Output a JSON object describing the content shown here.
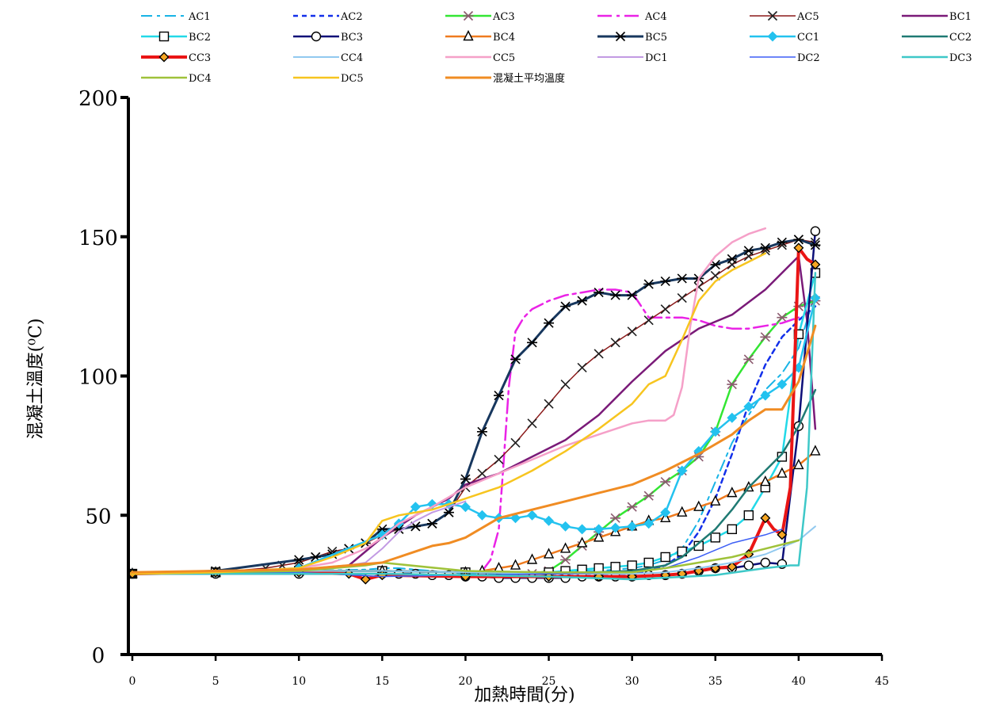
{
  "chart_data": {
    "type": "line",
    "title": "",
    "xlabel": "加熱時間(分)",
    "ylabel": "混凝土溫度(⁰C)",
    "xlim": [
      0,
      45
    ],
    "ylim": [
      0,
      200
    ],
    "xticks": [
      0,
      5,
      10,
      15,
      20,
      25,
      30,
      35,
      40,
      45
    ],
    "yticks": [
      0,
      50,
      100,
      150,
      200
    ],
    "grid": false,
    "legend_position": "top",
    "series": [
      {
        "name": "AC1",
        "color": "#18b4e6",
        "dash": "14,6,4,6",
        "marker": "none",
        "width": 2,
        "x": [
          0,
          5,
          10,
          14,
          15,
          16,
          17,
          18,
          19,
          20,
          21,
          22,
          23,
          24,
          25,
          26,
          27,
          28,
          29,
          30,
          31,
          32,
          33,
          34,
          35,
          36,
          37,
          38,
          39,
          40,
          41
        ],
        "y": [
          29,
          29.5,
          30,
          30.5,
          31,
          31,
          30.5,
          30,
          29.5,
          29,
          29,
          29,
          29,
          29,
          29,
          29.5,
          30,
          30,
          30.5,
          31,
          32,
          34,
          38,
          48,
          62,
          76,
          86,
          95,
          101,
          110,
          130
        ]
      },
      {
        "name": "AC2",
        "color": "#1330ea",
        "dash": "6,5",
        "marker": "none",
        "width": 2.5,
        "x": [
          0,
          5,
          10,
          15,
          20,
          25,
          30,
          31,
          32,
          33,
          34,
          35,
          36,
          37,
          38,
          39,
          40,
          41
        ],
        "y": [
          29,
          29.5,
          30,
          30,
          29.5,
          29,
          29,
          30,
          32,
          36,
          44,
          56,
          72,
          90,
          104,
          114,
          120,
          125
        ]
      },
      {
        "name": "AC3",
        "color": "#33e633",
        "dash": "",
        "marker": "star",
        "markerColor": "#8b5a6e",
        "width": 2.5,
        "x": [
          0,
          5,
          10,
          15,
          20,
          24,
          25,
          26,
          27,
          28,
          29,
          30,
          31,
          32,
          33,
          34,
          35,
          36,
          37,
          38,
          39,
          40,
          41
        ],
        "y": [
          29,
          29.5,
          30,
          30,
          29.5,
          29,
          30,
          34,
          39,
          44,
          49,
          53,
          57,
          62,
          66,
          71,
          80,
          97,
          106,
          114,
          121,
          125,
          127
        ]
      },
      {
        "name": "AC4",
        "color": "#ea23e6",
        "dash": "18,6,4,6",
        "marker": "none",
        "width": 2.5,
        "x": [
          0,
          5,
          10,
          15,
          20,
          21,
          21.5,
          22,
          22.3,
          22.6,
          23,
          23.5,
          24,
          25,
          26,
          27,
          28,
          29,
          30,
          31,
          32,
          33,
          34,
          35,
          36,
          37,
          38,
          39,
          40
        ],
        "y": [
          29,
          29.5,
          30,
          30,
          29.5,
          30,
          34,
          45,
          70,
          96,
          116,
          121,
          124,
          127,
          129,
          130,
          131,
          131,
          130,
          121,
          121,
          121,
          120,
          118,
          117,
          117,
          118,
          119,
          121
        ]
      },
      {
        "name": "AC5",
        "color": "#8b1a1a",
        "dash": "",
        "marker": "x",
        "markerColor": "#202020",
        "width": 1.5,
        "x": [
          0,
          5,
          8,
          9,
          10,
          11,
          12,
          13,
          14,
          15,
          16,
          17,
          18,
          19,
          20,
          21,
          22,
          23,
          24,
          25,
          26,
          27,
          28,
          29,
          30,
          31,
          32,
          33,
          34,
          35,
          36,
          37,
          38,
          39,
          40,
          41
        ],
        "y": [
          29,
          29.5,
          31,
          32,
          33,
          35,
          37,
          38,
          40,
          43,
          45,
          46,
          47,
          51,
          60,
          65,
          70,
          76,
          83,
          90,
          97,
          103,
          108,
          112,
          116,
          120,
          124,
          128,
          132,
          136,
          140,
          143,
          145,
          147,
          149,
          148
        ]
      },
      {
        "name": "BC1",
        "color": "#7a1a78",
        "dash": "",
        "marker": "none",
        "width": 2.5,
        "x": [
          0,
          5,
          10,
          13,
          15,
          17,
          19,
          20,
          22,
          24,
          26,
          28,
          30,
          32,
          34,
          36,
          38,
          39,
          40,
          40.5,
          41
        ],
        "y": [
          29,
          29.5,
          30.5,
          32,
          42,
          50,
          56,
          61,
          65,
          71,
          77,
          86,
          98,
          109,
          117,
          122,
          131,
          137,
          143,
          120,
          81
        ]
      },
      {
        "name": "BC2",
        "color": "#23d9e8",
        "dash": "",
        "marker": "square",
        "markerColor": "#000000",
        "width": 2.5,
        "x": [
          0,
          5,
          10,
          15,
          20,
          25,
          26,
          27,
          28,
          29,
          30,
          31,
          32,
          33,
          34,
          35,
          36,
          37,
          38,
          39,
          40,
          41
        ],
        "y": [
          29,
          29.5,
          30,
          30,
          29.5,
          29.5,
          30,
          30.5,
          31,
          31.5,
          32,
          33,
          35,
          37,
          39,
          42,
          45,
          50,
          60,
          71,
          115,
          137
        ]
      },
      {
        "name": "BC3",
        "color": "#0d0f78",
        "dash": "",
        "marker": "circle",
        "markerColor": "#000000",
        "width": 2.5,
        "x": [
          0,
          5,
          10,
          15,
          16,
          17,
          18,
          19,
          20,
          21,
          22,
          23,
          24,
          25,
          26,
          27,
          28,
          29,
          30,
          31,
          32,
          33,
          34,
          35,
          36,
          37,
          38,
          39,
          40,
          41
        ],
        "y": [
          29,
          29,
          29,
          29,
          29,
          29,
          28.5,
          28.5,
          28,
          28,
          27.5,
          27.5,
          27.5,
          27.5,
          27.5,
          28,
          28,
          28,
          28,
          28.5,
          28.5,
          29,
          30,
          31,
          31,
          32,
          33,
          32.5,
          82,
          152
        ]
      },
      {
        "name": "BC4",
        "color": "#ef7b1f",
        "dash": "",
        "marker": "triangle",
        "markerColor": "#000000",
        "width": 2.5,
        "x": [
          0,
          5,
          10,
          15,
          20,
          21,
          22,
          23,
          24,
          25,
          26,
          27,
          28,
          29,
          30,
          31,
          32,
          33,
          34,
          35,
          36,
          37,
          38,
          39,
          40,
          41
        ],
        "y": [
          29,
          29.5,
          30,
          30,
          29.5,
          30,
          31,
          32,
          34,
          36,
          38,
          40,
          42,
          44,
          46,
          48,
          49,
          51,
          53,
          55,
          58,
          60,
          62,
          65,
          68,
          73
        ]
      },
      {
        "name": "BC5",
        "color": "#17375e",
        "dash": "",
        "marker": "star",
        "markerColor": "#000000",
        "width": 3,
        "x": [
          0,
          5,
          10,
          11,
          12,
          13,
          14,
          15,
          16,
          17,
          18,
          19,
          20,
          21,
          22,
          23,
          24,
          25,
          26,
          27,
          28,
          29,
          30,
          31,
          32,
          33,
          34,
          35,
          36,
          37,
          38,
          39,
          40,
          41
        ],
        "y": [
          29,
          30,
          34,
          35,
          36,
          38,
          40,
          45,
          45,
          46,
          47,
          51,
          63,
          80,
          93,
          106,
          112,
          119,
          125,
          127,
          130,
          129,
          129,
          133,
          134,
          135,
          135,
          140,
          142,
          145,
          146,
          148,
          149,
          147
        ]
      },
      {
        "name": "CC1",
        "color": "#23c2ef",
        "dash": "",
        "marker": "diamond",
        "markerColor": "#23c2ef",
        "width": 2.5,
        "x": [
          0,
          5,
          10,
          15,
          16,
          17,
          18,
          19,
          20,
          21,
          22,
          23,
          24,
          25,
          26,
          27,
          28,
          29,
          30,
          31,
          32,
          33,
          34,
          35,
          36,
          37,
          38,
          39,
          40,
          41
        ],
        "y": [
          29,
          29.5,
          31,
          43,
          47,
          53,
          54,
          54,
          53,
          50,
          49,
          49,
          50,
          48,
          46,
          45,
          45,
          45.5,
          46,
          47,
          51,
          66,
          73,
          80,
          85,
          89,
          93,
          97,
          103,
          128
        ]
      },
      {
        "name": "CC2",
        "color": "#1f7a73",
        "dash": "",
        "marker": "none",
        "width": 2.5,
        "x": [
          0,
          5,
          10,
          15,
          20,
          25,
          30,
          32,
          33,
          34,
          35,
          36,
          37,
          38,
          39,
          40,
          41
        ],
        "y": [
          29,
          29.5,
          30,
          30,
          29.5,
          29,
          30,
          32,
          35,
          40,
          45,
          52,
          60,
          66,
          72,
          82,
          95
        ]
      },
      {
        "name": "CC3",
        "color": "#ea1515",
        "dash": "",
        "marker": "diamond",
        "markerColor": "#000000",
        "width": 4,
        "x": [
          0,
          5,
          10,
          13,
          14,
          15,
          20,
          25,
          28,
          30,
          32,
          33,
          34,
          35,
          36,
          37,
          38,
          38.5,
          39,
          39.5,
          40,
          40.5,
          41
        ],
        "y": [
          29,
          29.5,
          29.5,
          29,
          27,
          28.5,
          28,
          28,
          28,
          28,
          28.5,
          29,
          30,
          31,
          31.5,
          36,
          49,
          45,
          43,
          60,
          146,
          142,
          140
        ]
      },
      {
        "name": "CC4",
        "color": "#91c9ef",
        "dash": "",
        "marker": "none",
        "width": 2,
        "x": [
          0,
          5,
          10,
          15,
          20,
          25,
          30,
          32,
          34,
          36,
          38,
          40,
          41
        ],
        "y": [
          29,
          29.5,
          30,
          30,
          29.5,
          29,
          29,
          29.5,
          31,
          33,
          36,
          41,
          46
        ]
      },
      {
        "name": "CC5",
        "color": "#f5a0c8",
        "dash": "",
        "marker": "none",
        "width": 2.5,
        "x": [
          0,
          5,
          10,
          12,
          14,
          15,
          16,
          18,
          20,
          22,
          24,
          26,
          28,
          30,
          31,
          32,
          32.5,
          33,
          33.5,
          34,
          35,
          36,
          37,
          38
        ],
        "y": [
          29,
          29.5,
          31,
          33,
          38,
          42,
          47,
          53,
          60,
          65,
          70,
          75,
          79,
          83,
          84,
          84,
          86,
          96,
          118,
          135,
          143,
          148,
          151,
          153
        ]
      },
      {
        "name": "DC1",
        "color": "#c29ae3",
        "dash": "",
        "marker": "none",
        "width": 2,
        "x": [
          0,
          5,
          10,
          13,
          14,
          15,
          16,
          17,
          18,
          19,
          20
        ],
        "y": [
          29,
          29.5,
          30,
          32,
          33,
          38,
          44,
          48,
          51,
          53,
          55
        ]
      },
      {
        "name": "DC2",
        "color": "#3d5ff5",
        "dash": "",
        "marker": "none",
        "width": 1.5,
        "x": [
          0,
          5,
          10,
          15,
          20,
          25,
          30,
          32,
          34,
          36,
          38,
          39
        ],
        "y": [
          29,
          29.5,
          29.5,
          28,
          28.5,
          29,
          29.5,
          31,
          35,
          40,
          43,
          45
        ]
      },
      {
        "name": "DC3",
        "color": "#3ec8c8",
        "dash": "",
        "marker": "none",
        "width": 2.5,
        "x": [
          0,
          5,
          10,
          15,
          20,
          25,
          30,
          35,
          38,
          39.5,
          40,
          40.5,
          41
        ],
        "y": [
          29,
          29,
          29,
          29,
          28.5,
          28,
          27,
          28.5,
          31,
          32,
          32,
          60,
          137
        ]
      },
      {
        "name": "DC4",
        "color": "#9fc23a",
        "dash": "",
        "marker": "none",
        "width": 2.5,
        "x": [
          0,
          5,
          10,
          14,
          15,
          20,
          25,
          30,
          32,
          34,
          36,
          38,
          40
        ],
        "y": [
          29,
          29.5,
          30,
          32,
          33,
          30,
          29.5,
          29.5,
          31,
          33,
          35,
          38,
          41
        ]
      },
      {
        "name": "DC5",
        "color": "#f7c51f",
        "dash": "",
        "marker": "none",
        "width": 2.5,
        "x": [
          0,
          5,
          10,
          12,
          14,
          15,
          16,
          18,
          20,
          22,
          24,
          26,
          28,
          30,
          31,
          32,
          33,
          34,
          35,
          36,
          37,
          38
        ],
        "y": [
          29,
          29.5,
          31,
          35,
          40,
          48,
          50,
          52,
          56,
          60,
          66,
          73,
          81,
          90,
          97,
          100,
          113,
          127,
          134,
          138,
          141,
          144
        ]
      },
      {
        "name": "混凝土平均溫度",
        "color": "#f08c23",
        "dash": "",
        "marker": "none",
        "width": 3,
        "x": [
          0,
          5,
          10,
          15,
          16,
          17,
          18,
          19,
          20,
          22,
          24,
          26,
          28,
          30,
          32,
          34,
          36,
          37,
          38,
          39,
          40,
          41
        ],
        "y": [
          29.5,
          30,
          30.5,
          33,
          35,
          37,
          39,
          40,
          42,
          49,
          52,
          55,
          58,
          61,
          66,
          72,
          79,
          84,
          88,
          88,
          98,
          118
        ]
      }
    ]
  }
}
